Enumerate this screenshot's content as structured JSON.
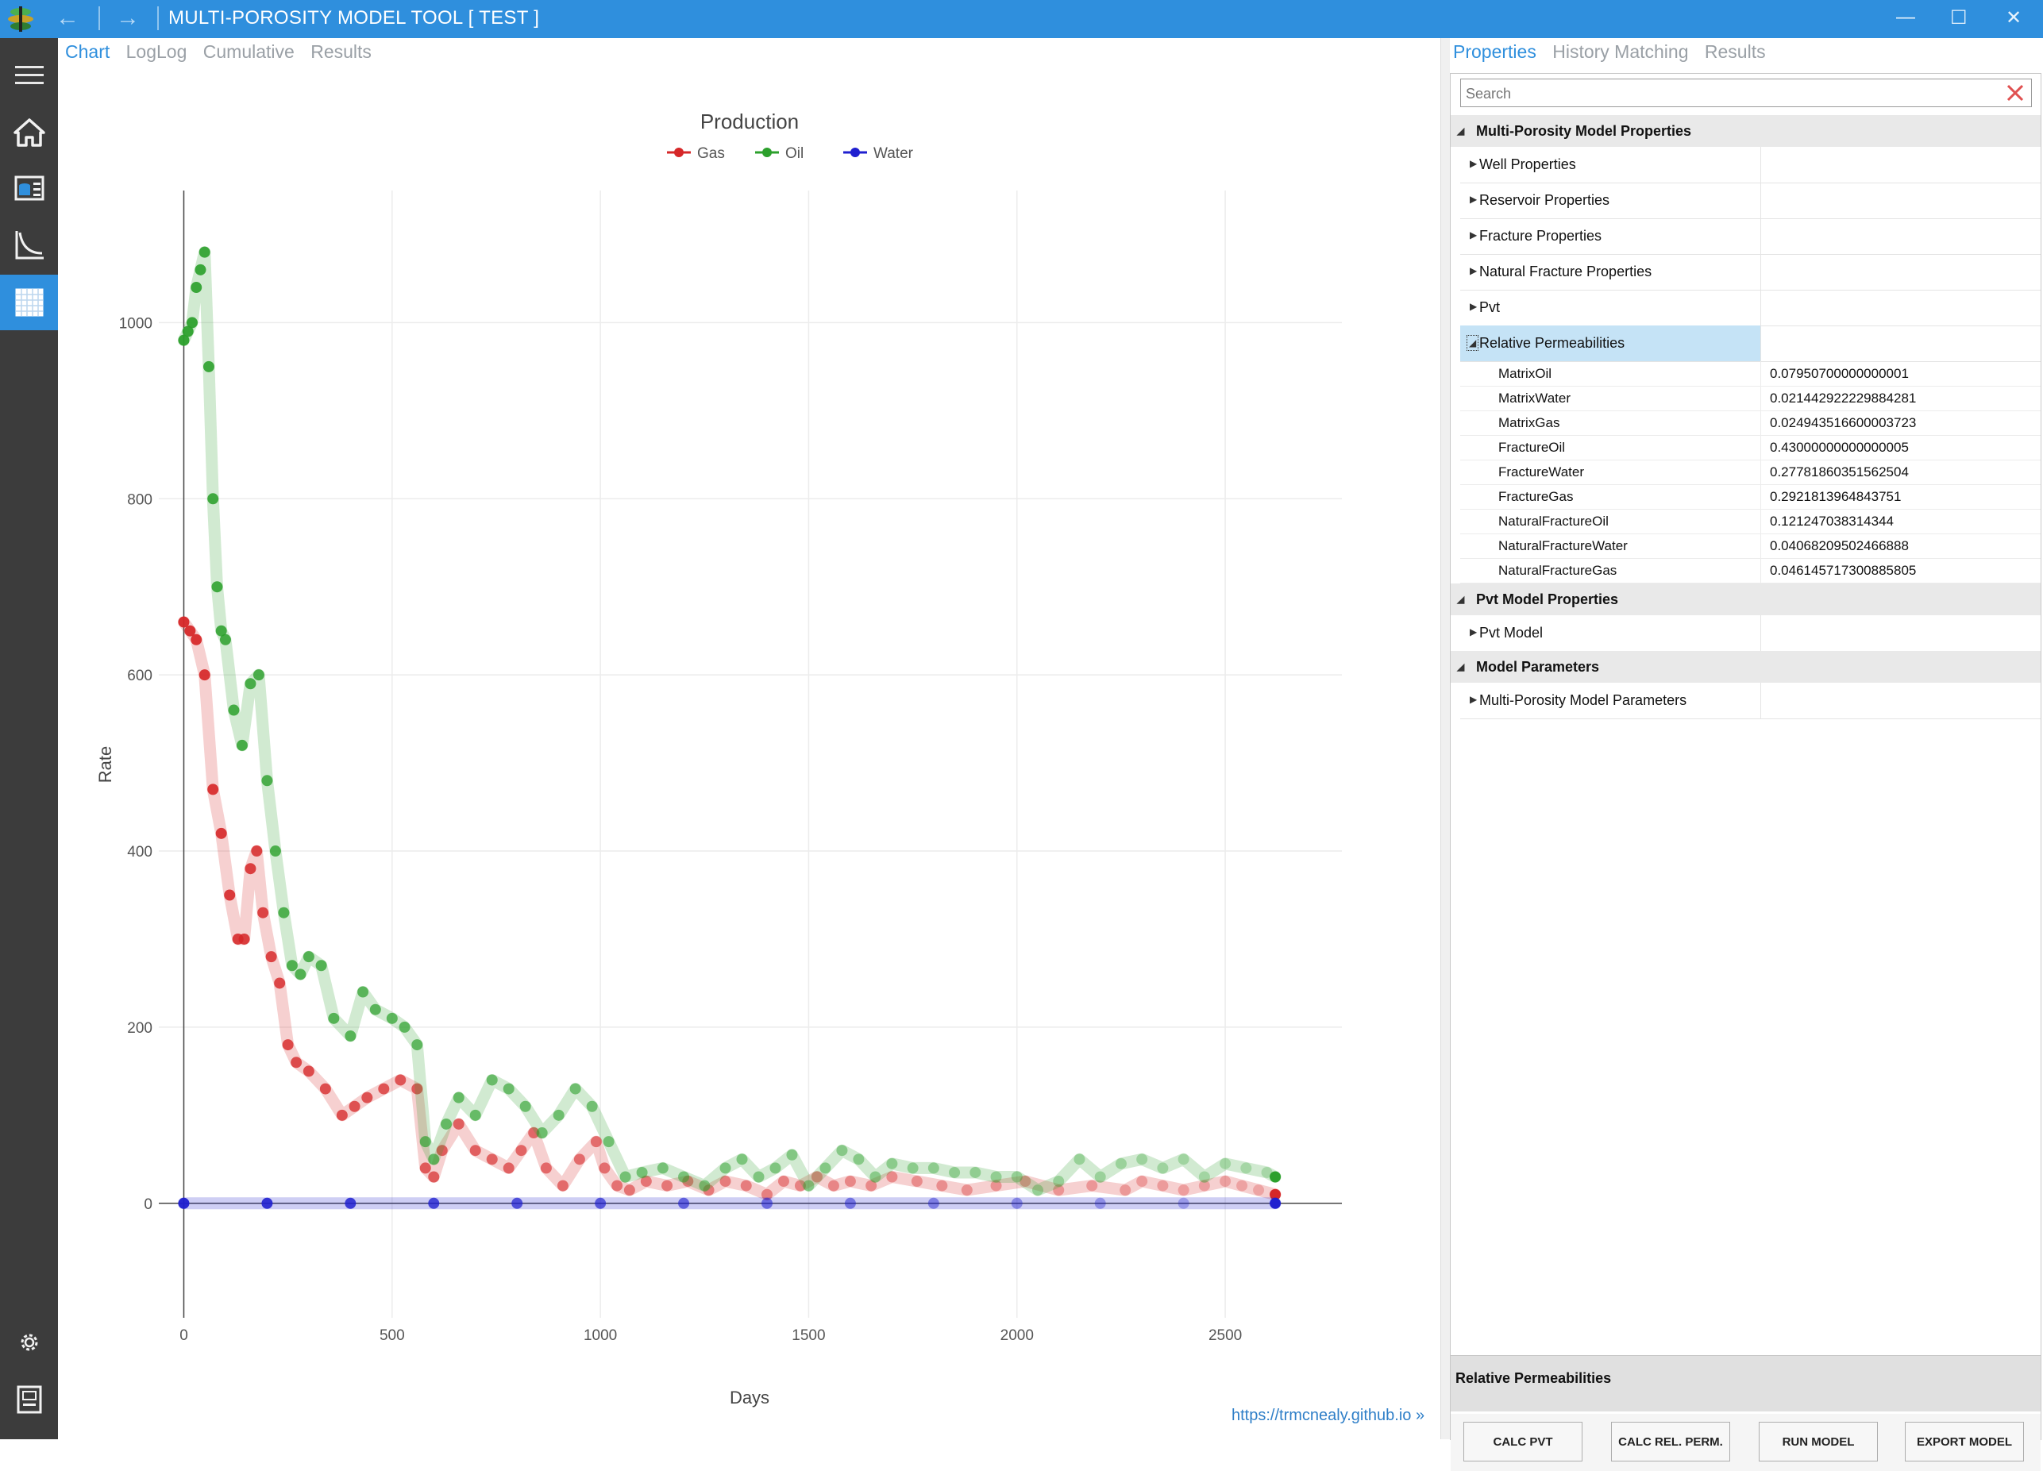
{
  "window": {
    "title": "MULTI-POROSITY MODEL TOOL [ TEST ]",
    "back_symbol": "←",
    "forward_symbol": "→",
    "minimize_symbol": "—",
    "maximize_symbol": "☐",
    "close_symbol": "✕"
  },
  "sidebar": {
    "icons": [
      "hamburger-icon",
      "home-icon",
      "database-icon",
      "chart-axes-icon",
      "grid-table-icon",
      "gear-icon",
      "document-icon"
    ],
    "active_index": 4
  },
  "left_tabs": [
    {
      "label": "Chart",
      "active": true
    },
    {
      "label": "LogLog",
      "active": false
    },
    {
      "label": "Cumulative",
      "active": false
    },
    {
      "label": "Results",
      "active": false
    }
  ],
  "chart_data": {
    "type": "scatter",
    "title": "Production",
    "xlabel": "Days",
    "ylabel": "Rate",
    "xlim": [
      -60,
      2780
    ],
    "ylim": [
      -130,
      1150
    ],
    "xticks": [
      0,
      500,
      1000,
      1500,
      2000,
      2500
    ],
    "yticks": [
      0,
      200,
      400,
      600,
      800,
      1000
    ],
    "grid": true,
    "legend_position": "top-center",
    "series": [
      {
        "name": "Gas",
        "color": "#d62728",
        "x": [
          0,
          15,
          30,
          50,
          70,
          90,
          110,
          130,
          145,
          160,
          175,
          190,
          210,
          230,
          250,
          270,
          300,
          340,
          380,
          410,
          440,
          480,
          520,
          560,
          580,
          600,
          620,
          660,
          700,
          740,
          780,
          810,
          840,
          870,
          910,
          950,
          990,
          1010,
          1040,
          1070,
          1110,
          1160,
          1210,
          1260,
          1300,
          1350,
          1400,
          1440,
          1480,
          1520,
          1560,
          1600,
          1650,
          1700,
          1760,
          1820,
          1880,
          1950,
          2020,
          2100,
          2180,
          2260,
          2300,
          2350,
          2400,
          2450,
          2500,
          2540,
          2580,
          2620
        ],
        "y": [
          660,
          650,
          640,
          600,
          470,
          420,
          350,
          300,
          300,
          380,
          400,
          330,
          280,
          250,
          180,
          160,
          150,
          130,
          100,
          110,
          120,
          130,
          140,
          130,
          40,
          30,
          60,
          90,
          60,
          50,
          40,
          60,
          80,
          40,
          20,
          50,
          70,
          40,
          20,
          15,
          25,
          20,
          25,
          15,
          25,
          20,
          10,
          25,
          20,
          30,
          20,
          25,
          20,
          30,
          25,
          20,
          15,
          20,
          25,
          15,
          20,
          15,
          25,
          20,
          15,
          20,
          25,
          20,
          15,
          10
        ]
      },
      {
        "name": "Oil",
        "color": "#2ca02c",
        "x": [
          0,
          10,
          20,
          30,
          40,
          50,
          60,
          70,
          80,
          90,
          100,
          120,
          140,
          160,
          180,
          200,
          220,
          240,
          260,
          280,
          300,
          330,
          360,
          400,
          430,
          460,
          500,
          530,
          560,
          580,
          600,
          630,
          660,
          700,
          740,
          780,
          820,
          860,
          900,
          940,
          980,
          1020,
          1060,
          1100,
          1150,
          1200,
          1250,
          1300,
          1340,
          1380,
          1420,
          1460,
          1500,
          1540,
          1580,
          1620,
          1660,
          1700,
          1750,
          1800,
          1850,
          1900,
          1950,
          2000,
          2050,
          2100,
          2150,
          2200,
          2250,
          2300,
          2350,
          2400,
          2450,
          2500,
          2550,
          2600,
          2620
        ],
        "y": [
          980,
          990,
          1000,
          1040,
          1060,
          1080,
          950,
          800,
          700,
          650,
          640,
          560,
          520,
          590,
          600,
          480,
          400,
          330,
          270,
          260,
          280,
          270,
          210,
          190,
          240,
          220,
          210,
          200,
          180,
          70,
          50,
          90,
          120,
          100,
          140,
          130,
          110,
          80,
          100,
          130,
          110,
          70,
          30,
          35,
          40,
          30,
          20,
          40,
          50,
          30,
          40,
          55,
          20,
          40,
          60,
          50,
          30,
          45,
          40,
          40,
          35,
          35,
          30,
          30,
          15,
          25,
          50,
          30,
          45,
          50,
          40,
          50,
          30,
          45,
          40,
          35,
          30
        ]
      },
      {
        "name": "Water",
        "color": "#1f1fcf",
        "x": [
          0,
          200,
          400,
          600,
          800,
          1000,
          1200,
          1400,
          1600,
          1800,
          2000,
          2200,
          2400,
          2620
        ],
        "y": [
          0,
          0,
          0,
          0,
          0,
          0,
          0,
          0,
          0,
          0,
          0,
          0,
          0,
          0
        ]
      }
    ]
  },
  "credit_link": "https://trmcnealy.github.io »",
  "right_tabs": [
    {
      "label": "Properties",
      "active": true
    },
    {
      "label": "History Matching",
      "active": false
    },
    {
      "label": "Results",
      "active": false
    }
  ],
  "properties": {
    "search_placeholder": "Search",
    "categories": [
      {
        "label": "Multi-Porosity Model Properties",
        "items": [
          "Well Properties",
          "Reservoir Properties",
          "Fracture Properties",
          "Natural Fracture Properties",
          "Pvt",
          "Relative Permeabilities"
        ]
      },
      {
        "label": "Pvt Model Properties",
        "items": [
          "Pvt Model"
        ]
      },
      {
        "label": "Model Parameters",
        "items": [
          "Multi-Porosity Model Parameters"
        ]
      }
    ],
    "relative_permeabilities": [
      {
        "name": "MatrixOil",
        "value": "0.07950700000000001"
      },
      {
        "name": "MatrixWater",
        "value": "0.021442922229884281"
      },
      {
        "name": "MatrixGas",
        "value": "0.024943516600003723"
      },
      {
        "name": "FractureOil",
        "value": "0.43000000000000005"
      },
      {
        "name": "FractureWater",
        "value": "0.27781860351562504"
      },
      {
        "name": "FractureGas",
        "value": "0.2921813964843751"
      },
      {
        "name": "NaturalFractureOil",
        "value": "0.121247038314344"
      },
      {
        "name": "NaturalFractureWater",
        "value": "0.04068209502466888"
      },
      {
        "name": "NaturalFractureGas",
        "value": "0.046145717300885805"
      }
    ],
    "description_title": "Relative Permeabilities"
  },
  "buttons": {
    "calc_pvt": "CALC PVT",
    "calc_rel_perm": "CALC REL. PERM.",
    "run_model": "RUN MODEL",
    "export_model": "EXPORT MODEL"
  }
}
